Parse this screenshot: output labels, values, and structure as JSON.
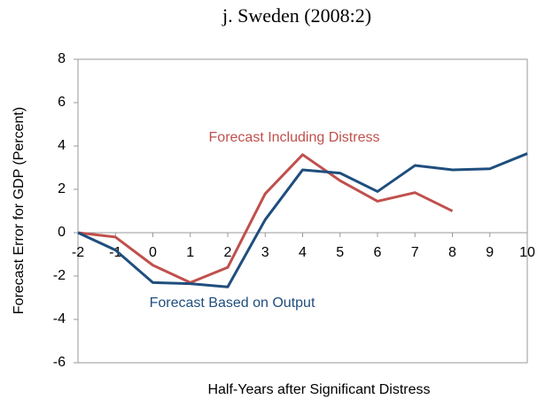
{
  "chart_data": {
    "type": "line",
    "title": "j.  Sweden (2008:2)",
    "x_label": "Half-Years after Significant Distress",
    "y_label": "Forecast Error for GDP (Percent)",
    "x": [
      -2,
      -1,
      0,
      1,
      2,
      3,
      4,
      5,
      6,
      7,
      8,
      9,
      10
    ],
    "series": [
      {
        "name": "Forecast Including Distress",
        "color": "#c0504d",
        "values": [
          0,
          -0.2,
          -1.5,
          -2.3,
          -1.6,
          1.8,
          3.6,
          2.4,
          1.45,
          1.85,
          1.0,
          null,
          null
        ]
      },
      {
        "name": "Forecast Based on Output",
        "color": "#1f4e7d",
        "values": [
          0,
          -0.8,
          -2.3,
          -2.35,
          -2.5,
          0.6,
          2.9,
          2.75,
          1.9,
          3.1,
          2.9,
          2.95,
          3.65
        ]
      }
    ],
    "xlim": [
      -2,
      10
    ],
    "xticks": [
      -2,
      -1,
      0,
      1,
      2,
      3,
      4,
      5,
      6,
      7,
      8,
      9,
      10
    ],
    "ylim": [
      -6,
      8
    ],
    "yticks": [
      -6,
      -4,
      -2,
      0,
      2,
      4,
      6,
      8
    ],
    "grid": false
  }
}
